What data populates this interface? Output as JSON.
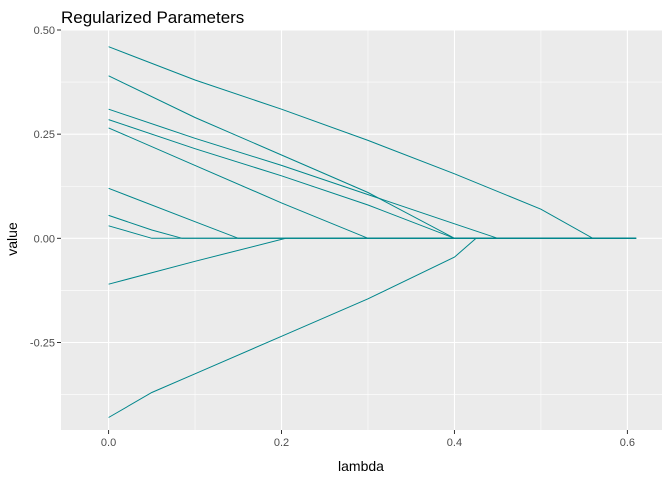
{
  "chart_data": {
    "type": "line",
    "title": "Regularized Parameters",
    "xlabel": "lambda",
    "ylabel": "value",
    "xlim": [
      -0.055,
      0.64
    ],
    "ylim": [
      -0.46,
      0.5
    ],
    "x_ticks": [
      0.0,
      0.2,
      0.4,
      0.6
    ],
    "x_tick_labels": [
      "0.0",
      "0.2",
      "0.4",
      "0.6"
    ],
    "x_minor_ticks": [
      0.1,
      0.3,
      0.5
    ],
    "y_ticks": [
      -0.25,
      0.0,
      0.25,
      0.5
    ],
    "y_tick_labels": [
      "-0.25",
      "0.00",
      "0.25",
      "0.50"
    ],
    "y_minor_ticks": [
      -0.375,
      -0.125,
      0.125,
      0.375
    ],
    "grid": true,
    "legend": "none",
    "line_color": "#00868B",
    "panel_background": "#EBEBEB",
    "series": [
      {
        "x": [
          0,
          0.1,
          0.2,
          0.3,
          0.4,
          0.5,
          0.56,
          0.61
        ],
        "y": [
          0.46,
          0.38,
          0.31,
          0.235,
          0.155,
          0.07,
          0.0,
          0.0
        ]
      },
      {
        "x": [
          0,
          0.1,
          0.2,
          0.3,
          0.4,
          0.45,
          0.61
        ],
        "y": [
          0.31,
          0.24,
          0.175,
          0.105,
          0.035,
          0.0,
          0.0
        ]
      },
      {
        "x": [
          0,
          0.1,
          0.2,
          0.3,
          0.4,
          0.61
        ],
        "y": [
          0.39,
          0.29,
          0.2,
          0.11,
          0.0,
          0.0
        ]
      },
      {
        "x": [
          0,
          0.1,
          0.2,
          0.3,
          0.4,
          0.61
        ],
        "y": [
          0.285,
          0.215,
          0.15,
          0.08,
          0.0,
          0.0
        ]
      },
      {
        "x": [
          0,
          0.1,
          0.2,
          0.3,
          0.61
        ],
        "y": [
          0.265,
          0.175,
          0.085,
          0.0,
          0.0
        ]
      },
      {
        "x": [
          0,
          0.1,
          0.15,
          0.61
        ],
        "y": [
          0.12,
          0.04,
          0.0,
          0.0
        ]
      },
      {
        "x": [
          0,
          0.05,
          0.085,
          0.61
        ],
        "y": [
          0.055,
          0.02,
          0.0,
          0.0
        ]
      },
      {
        "x": [
          0,
          0.05,
          0.61
        ],
        "y": [
          0.03,
          0.0,
          0.0
        ]
      },
      {
        "x": [
          0,
          0.1,
          0.205,
          0.61
        ],
        "y": [
          -0.11,
          -0.055,
          0.0,
          0.0
        ]
      },
      {
        "x": [
          0,
          0.05,
          0.1,
          0.2,
          0.3,
          0.4,
          0.425,
          0.61
        ],
        "y": [
          -0.43,
          -0.37,
          -0.325,
          -0.235,
          -0.145,
          -0.045,
          0.0,
          0.0
        ]
      }
    ]
  }
}
